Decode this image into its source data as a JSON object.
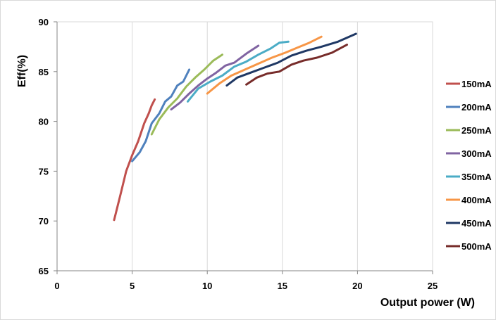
{
  "chart_data": {
    "type": "line",
    "title": "",
    "xlabel": "Output power (W)",
    "ylabel": "Eff(%)",
    "xlim": [
      0,
      25
    ],
    "ylim": [
      65,
      90
    ],
    "xticks": [
      0,
      5,
      10,
      15,
      20,
      25
    ],
    "yticks": [
      65,
      70,
      75,
      80,
      85,
      90
    ],
    "grid": "vertical",
    "legend_position": "right",
    "series": [
      {
        "name": "150mA",
        "color": "#c0504d",
        "x": [
          3.8,
          4.2,
          4.6,
          5.0,
          5.4,
          5.8,
          6.1,
          6.3,
          6.5
        ],
        "y": [
          70.1,
          72.5,
          75.0,
          76.6,
          78.0,
          79.8,
          80.8,
          81.6,
          82.2
        ]
      },
      {
        "name": "200mA",
        "color": "#4f81bd",
        "x": [
          5.0,
          5.5,
          5.9,
          6.3,
          6.8,
          7.2,
          7.6,
          8.0,
          8.4,
          8.8
        ],
        "y": [
          76.0,
          76.9,
          78.0,
          79.8,
          80.8,
          82.0,
          82.5,
          83.6,
          84.0,
          85.2
        ]
      },
      {
        "name": "250mA",
        "color": "#9bbb59",
        "x": [
          6.3,
          6.8,
          7.4,
          8.0,
          8.6,
          9.2,
          9.8,
          10.4,
          11.0
        ],
        "y": [
          78.7,
          80.2,
          81.4,
          82.3,
          83.5,
          84.4,
          85.2,
          86.1,
          86.7
        ]
      },
      {
        "name": "300mA",
        "color": "#8064a2",
        "x": [
          7.6,
          8.2,
          8.8,
          9.4,
          10.0,
          10.6,
          11.2,
          11.8,
          12.6,
          13.4
        ],
        "y": [
          81.2,
          81.9,
          82.8,
          83.6,
          84.3,
          84.9,
          85.6,
          85.9,
          86.8,
          87.6
        ]
      },
      {
        "name": "350mA",
        "color": "#4bacc6",
        "x": [
          8.7,
          9.4,
          10.2,
          11.0,
          11.8,
          12.6,
          13.4,
          14.2,
          14.8,
          15.4
        ],
        "y": [
          82.0,
          83.3,
          84.0,
          84.6,
          85.5,
          86.0,
          86.7,
          87.3,
          87.9,
          88.0
        ]
      },
      {
        "name": "400mA",
        "color": "#f79646",
        "x": [
          10.0,
          10.8,
          11.6,
          12.5,
          13.4,
          14.3,
          15.2,
          16.0,
          16.8,
          17.6
        ],
        "y": [
          82.8,
          83.8,
          84.6,
          85.2,
          85.8,
          86.4,
          86.9,
          87.4,
          87.9,
          88.5
        ]
      },
      {
        "name": "450mA",
        "color": "#1f3864",
        "x": [
          11.3,
          12.0,
          12.9,
          13.8,
          14.7,
          15.6,
          16.6,
          17.6,
          18.7,
          19.9
        ],
        "y": [
          83.6,
          84.4,
          84.9,
          85.4,
          85.9,
          86.6,
          87.1,
          87.5,
          88.0,
          88.8
        ]
      },
      {
        "name": "500mA",
        "color": "#772c2a",
        "x": [
          12.6,
          13.3,
          14.0,
          14.8,
          15.6,
          16.4,
          17.3,
          18.3,
          19.3
        ],
        "y": [
          83.7,
          84.4,
          84.8,
          85.0,
          85.7,
          86.1,
          86.4,
          86.9,
          87.7
        ]
      }
    ]
  }
}
